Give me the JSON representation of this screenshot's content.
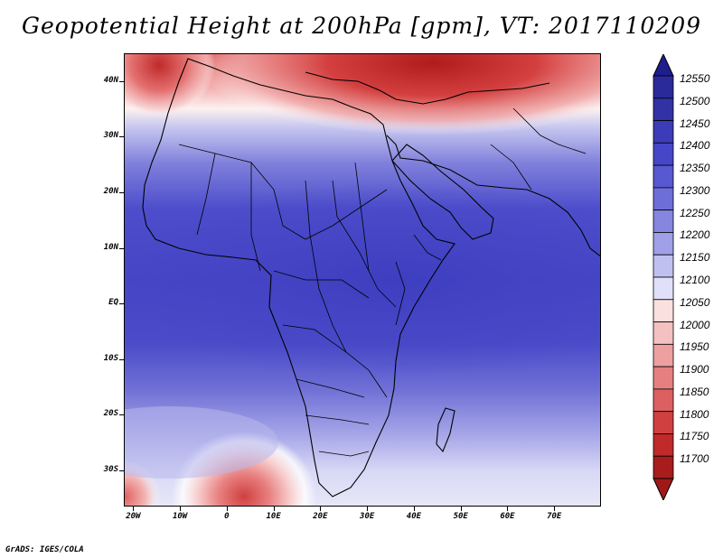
{
  "title": "Geopotential Height at 200hPa [gpm], VT: 2017110209",
  "footer": "GrADS: IGES/COLA",
  "map": {
    "lat_labels": [
      "40N",
      "30N",
      "20N",
      "10N",
      "EQ",
      "10S",
      "20S",
      "30S"
    ],
    "lat_values": [
      40,
      30,
      20,
      10,
      0,
      -10,
      -20,
      -30
    ],
    "lon_labels": [
      "20W",
      "10W",
      "0",
      "10E",
      "20E",
      "30E",
      "40E",
      "50E",
      "60E",
      "70E"
    ],
    "lon_values": [
      -20,
      -10,
      0,
      10,
      20,
      30,
      40,
      50,
      60,
      70
    ],
    "lon_range": [
      -22,
      80
    ],
    "lat_range": [
      -36.5,
      45
    ],
    "field_description_colors": {
      "north_high_region": "#b52126",
      "tropical_low_region": "#4646c8"
    }
  },
  "colorbar": {
    "labels": [
      "12550",
      "12500",
      "12450",
      "12400",
      "12350",
      "12300",
      "12250",
      "12200",
      "12150",
      "12100",
      "12050",
      "12000",
      "11950",
      "11900",
      "11850",
      "11800",
      "11750",
      "11700"
    ],
    "colors": [
      "#2a2a9a",
      "#3232a6",
      "#3c3cb8",
      "#4646c8",
      "#5858d0",
      "#6e6ed8",
      "#8686e0",
      "#a0a0e8",
      "#c0c0f0",
      "#e0e0f8",
      "#fbe0e0",
      "#f5c0c0",
      "#eea0a0",
      "#e68080",
      "#dc6060",
      "#d04040",
      "#c02a2a",
      "#a81c1c"
    ],
    "top_arrow_color": "#1e1e8c",
    "bottom_arrow_color": "#a01818"
  }
}
